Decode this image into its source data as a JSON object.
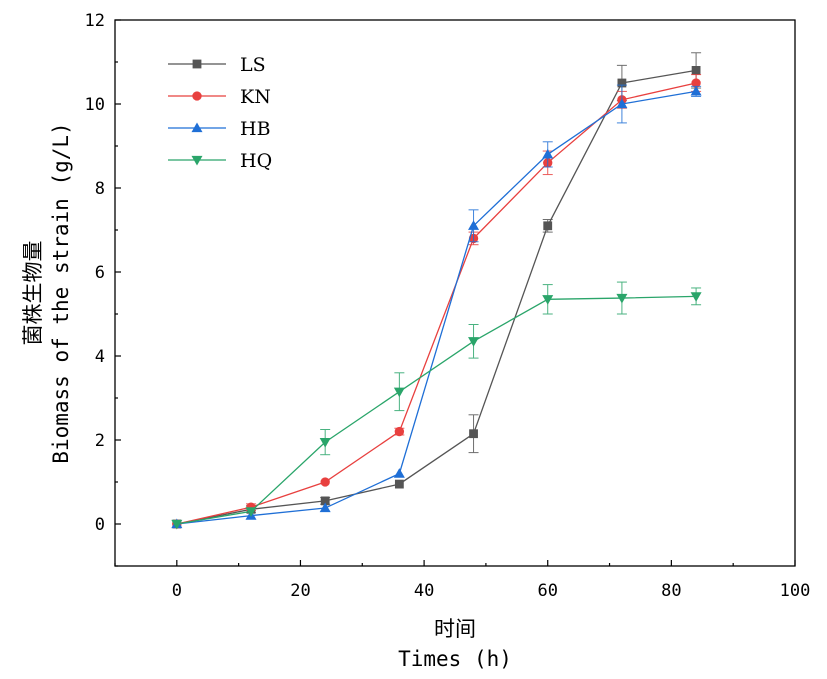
{
  "chart_data": {
    "type": "line",
    "title": "",
    "xlabel_cn": "时间",
    "xlabel": "Times (h)",
    "ylabel_cn": "菌株生物量",
    "ylabel": "Biomass of the strain (g/L)",
    "xlim": [
      -10,
      100
    ],
    "ylim": [
      -1,
      12
    ],
    "xticks": [
      0,
      20,
      40,
      60,
      80,
      100
    ],
    "yticks": [
      0,
      2,
      4,
      6,
      8,
      10,
      12
    ],
    "legend_position": "top-left",
    "x": [
      0,
      12,
      24,
      36,
      48,
      60,
      72,
      84
    ],
    "series": [
      {
        "name": "LS",
        "color": "#555555",
        "marker": "square",
        "values": [
          0.0,
          0.35,
          0.55,
          0.95,
          2.15,
          7.1,
          10.5,
          10.8
        ],
        "errors": [
          0.05,
          0.08,
          0.08,
          0.05,
          0.45,
          0.15,
          0.42,
          0.42
        ]
      },
      {
        "name": "KN",
        "color": "#e8403f",
        "marker": "circle",
        "values": [
          0.0,
          0.4,
          1.0,
          2.2,
          6.8,
          8.6,
          10.1,
          10.5
        ],
        "errors": [
          0.05,
          0.08,
          0.05,
          0.08,
          0.15,
          0.28,
          0.2,
          0.2
        ]
      },
      {
        "name": "HB",
        "color": "#1f6fd6",
        "marker": "triangle-up",
        "values": [
          0.0,
          0.2,
          0.38,
          1.2,
          7.1,
          8.8,
          10.0,
          10.3
        ],
        "errors": [
          0.03,
          0.05,
          0.05,
          0.05,
          0.38,
          0.3,
          0.45,
          0.12
        ]
      },
      {
        "name": "HQ",
        "color": "#2aa56a",
        "marker": "triangle-down",
        "values": [
          0.0,
          0.3,
          1.95,
          3.15,
          4.35,
          5.35,
          5.38,
          5.42
        ],
        "errors": [
          0.03,
          0.05,
          0.3,
          0.45,
          0.4,
          0.35,
          0.38,
          0.2
        ]
      }
    ]
  }
}
